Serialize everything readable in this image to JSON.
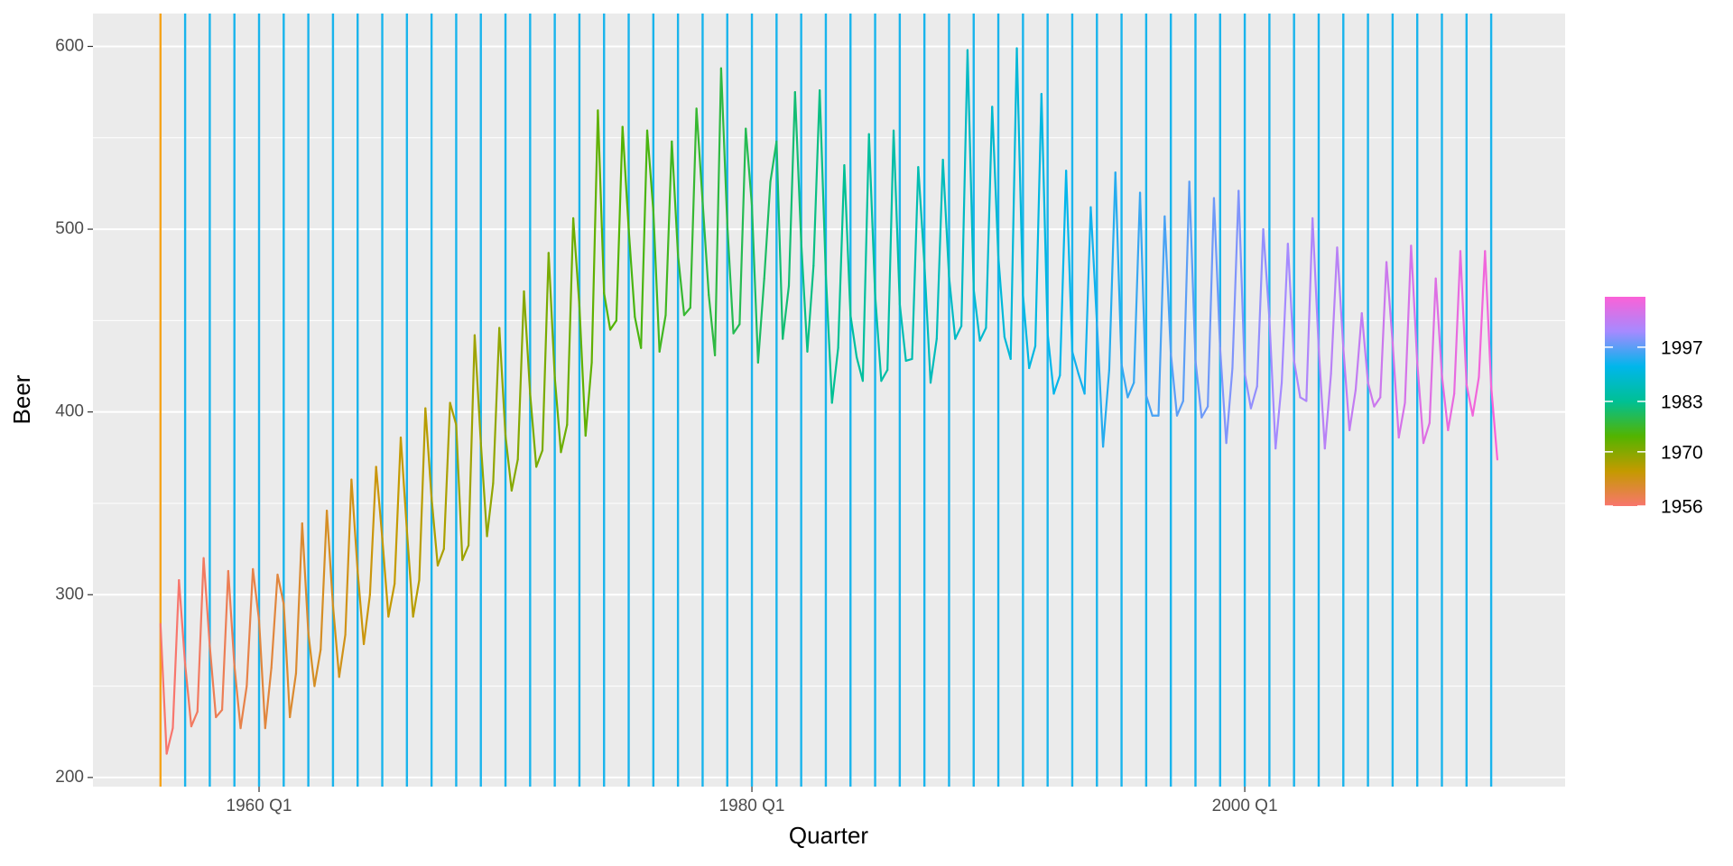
{
  "chart_data": {
    "type": "line",
    "x_label": "Quarter",
    "y_label": "Beer",
    "x": [
      1956,
      1956.25,
      1956.5,
      1956.75,
      1957,
      1957.25,
      1957.5,
      1957.75,
      1958,
      1958.25,
      1958.5,
      1958.75,
      1959,
      1959.25,
      1959.5,
      1959.75,
      1960,
      1960.25,
      1960.5,
      1960.75,
      1961,
      1961.25,
      1961.5,
      1961.75,
      1962,
      1962.25,
      1962.5,
      1962.75,
      1963,
      1963.25,
      1963.5,
      1963.75,
      1964,
      1964.25,
      1964.5,
      1964.75,
      1965,
      1965.25,
      1965.5,
      1965.75,
      1966,
      1966.25,
      1966.5,
      1966.75,
      1967,
      1967.25,
      1967.5,
      1967.75,
      1968,
      1968.25,
      1968.5,
      1968.75,
      1969,
      1969.25,
      1969.5,
      1969.75,
      1970,
      1970.25,
      1970.5,
      1970.75,
      1971,
      1971.25,
      1971.5,
      1971.75,
      1972,
      1972.25,
      1972.5,
      1972.75,
      1973,
      1973.25,
      1973.5,
      1973.75,
      1974,
      1974.25,
      1974.5,
      1974.75,
      1975,
      1975.25,
      1975.5,
      1975.75,
      1976,
      1976.25,
      1976.5,
      1976.75,
      1977,
      1977.25,
      1977.5,
      1977.75,
      1978,
      1978.25,
      1978.5,
      1978.75,
      1979,
      1979.25,
      1979.5,
      1979.75,
      1980,
      1980.25,
      1980.5,
      1980.75,
      1981,
      1981.25,
      1981.5,
      1981.75,
      1982,
      1982.25,
      1982.5,
      1982.75,
      1983,
      1983.25,
      1983.5,
      1983.75,
      1984,
      1984.25,
      1984.5,
      1984.75,
      1985,
      1985.25,
      1985.5,
      1985.75,
      1986,
      1986.25,
      1986.5,
      1986.75,
      1987,
      1987.25,
      1987.5,
      1987.75,
      1988,
      1988.25,
      1988.5,
      1988.75,
      1989,
      1989.25,
      1989.5,
      1989.75,
      1990,
      1990.25,
      1990.5,
      1990.75,
      1991,
      1991.25,
      1991.5,
      1991.75,
      1992,
      1992.25,
      1992.5,
      1992.75,
      1993,
      1993.25,
      1993.5,
      1993.75,
      1994,
      1994.25,
      1994.5,
      1994.75,
      1995,
      1995.25,
      1995.5,
      1995.75,
      1996,
      1996.25,
      1996.5,
      1996.75,
      1997,
      1997.25,
      1997.5,
      1997.75,
      1998,
      1998.25,
      1998.5,
      1998.75,
      1999,
      1999.25,
      1999.5,
      1999.75,
      2000,
      2000.25,
      2000.5,
      2000.75,
      2001,
      2001.25,
      2001.5,
      2001.75,
      2002,
      2002.25,
      2002.5,
      2002.75,
      2003,
      2003.25,
      2003.5,
      2003.75,
      2004,
      2004.25,
      2004.5,
      2004.75,
      2005,
      2005.25,
      2005.5,
      2005.75,
      2006,
      2006.25,
      2006.5,
      2006.75,
      2007,
      2007.25,
      2007.5,
      2007.75,
      2008,
      2008.25,
      2008.5,
      2008.75,
      2009,
      2009.25,
      2009.5,
      2009.75,
      2010,
      2010.25
    ],
    "values": [
      284,
      213,
      227,
      308,
      262,
      228,
      236,
      320,
      272,
      233,
      237,
      313,
      261,
      227,
      250,
      314,
      286,
      227,
      260,
      311,
      295,
      233,
      257,
      339,
      279,
      250,
      270,
      346,
      294,
      255,
      278,
      363,
      313,
      273,
      300,
      370,
      331,
      288,
      306,
      386,
      335,
      288,
      308,
      402,
      353,
      316,
      325,
      405,
      393,
      319,
      327,
      442,
      383,
      332,
      361,
      446,
      387,
      357,
      374,
      466,
      410,
      370,
      379,
      487,
      419,
      378,
      393,
      506,
      458,
      387,
      427,
      565,
      465,
      445,
      450,
      556,
      500,
      452,
      435,
      554,
      510,
      433,
      453,
      548,
      486,
      453,
      457,
      566,
      515,
      464,
      431,
      588,
      503,
      443,
      448,
      555,
      513,
      427,
      473,
      526,
      548,
      440,
      469,
      575,
      493,
      433,
      480,
      576,
      475,
      405,
      435,
      535,
      453,
      430,
      417,
      552,
      464,
      417,
      423,
      554,
      459,
      428,
      429,
      534,
      481,
      416,
      440,
      538,
      474,
      440,
      447,
      598,
      467,
      439,
      446,
      567,
      485,
      441,
      429,
      599,
      464,
      424,
      436,
      574,
      443,
      410,
      420,
      532,
      433,
      421,
      410,
      512,
      449,
      381,
      423,
      531,
      426,
      408,
      416,
      520,
      409,
      398,
      398,
      507,
      432,
      398,
      406,
      526,
      428,
      397,
      403,
      517,
      435,
      383,
      424,
      521,
      421,
      402,
      414,
      500,
      451,
      380,
      416,
      492,
      428,
      408,
      406,
      506,
      435,
      380,
      421,
      490,
      435,
      390,
      412,
      454,
      416,
      403,
      408,
      482,
      438,
      386,
      405,
      491,
      427,
      383,
      394,
      473,
      420,
      390,
      410,
      488,
      415,
      398,
      419,
      488,
      414,
      374
    ],
    "xlim": [
      1953.26,
      2013.0
    ],
    "xticks": [
      {
        "value": 1960,
        "label": "1960 Q1"
      },
      {
        "value": 1980,
        "label": "1980 Q1"
      },
      {
        "value": 2000,
        "label": "2000 Q1"
      }
    ],
    "ylim": [
      195,
      618
    ],
    "yticks": [
      200,
      300,
      400,
      500,
      600
    ],
    "grid": true,
    "color_scale": {
      "lim": [
        1956,
        2010
      ],
      "ticks": [
        1956,
        1970,
        1983,
        1997
      ],
      "colors": [
        "#F8766D",
        "#C49A00",
        "#53B400",
        "#00C094",
        "#00B6EB",
        "#A58AFF",
        "#FB61D7"
      ]
    },
    "highlight_vline": {
      "x": 1956,
      "color": "#F5A31A"
    },
    "vlines": {
      "color": "#19B4EC",
      "x": [
        1957,
        1958,
        1959,
        1960,
        1961,
        1962,
        1963,
        1964,
        1965,
        1966,
        1967,
        1968,
        1969,
        1970,
        1971,
        1972,
        1973,
        1974,
        1975,
        1976,
        1977,
        1978,
        1979,
        1980,
        1981,
        1982,
        1983,
        1984,
        1985,
        1986,
        1987,
        1988,
        1989,
        1990,
        1991,
        1992,
        1993,
        1994,
        1995,
        1996,
        1997,
        1998,
        1999,
        2000,
        2001,
        2002,
        2003,
        2004,
        2005,
        2006,
        2007,
        2008,
        2009,
        2010
      ]
    }
  }
}
